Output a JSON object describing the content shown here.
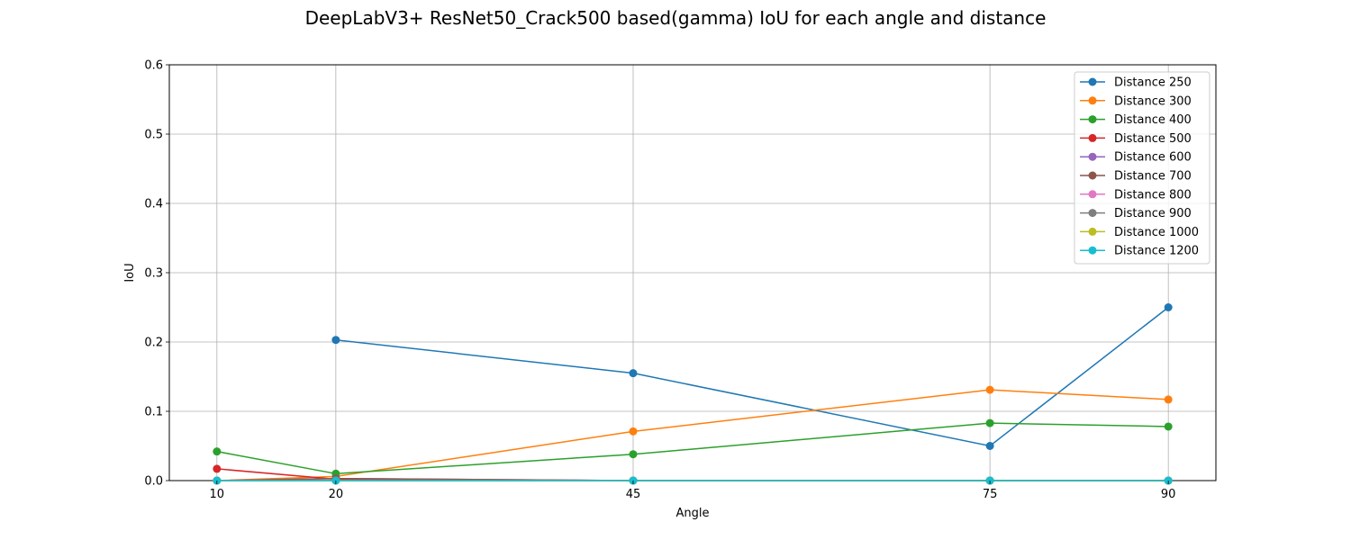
{
  "chart_data": {
    "type": "line",
    "title": "DeepLabV3+ ResNet50_Crack500 based(gamma) IoU for each angle and distance",
    "xlabel": "Angle",
    "ylabel": "IoU",
    "x": [
      10,
      20,
      45,
      75,
      90
    ],
    "x_tick_labels": [
      "10",
      "20",
      "45",
      "75",
      "90"
    ],
    "xlim": [
      6,
      94
    ],
    "ylim": [
      0,
      0.6
    ],
    "y_ticks": [
      0.0,
      0.1,
      0.2,
      0.3,
      0.4,
      0.5,
      0.6
    ],
    "y_tick_labels": [
      "0.0",
      "0.1",
      "0.2",
      "0.3",
      "0.4",
      "0.5",
      "0.6"
    ],
    "grid": true,
    "legend_position": "top-right",
    "series": [
      {
        "name": "Distance 250",
        "color": "#1f77b4",
        "values": [
          null,
          0.203,
          0.155,
          0.05,
          0.25
        ]
      },
      {
        "name": "Distance 300",
        "color": "#ff7f0e",
        "values": [
          0.0,
          0.006,
          0.071,
          0.131,
          0.117
        ]
      },
      {
        "name": "Distance 400",
        "color": "#2ca02c",
        "values": [
          0.042,
          0.01,
          0.038,
          0.083,
          0.078
        ]
      },
      {
        "name": "Distance 500",
        "color": "#d62728",
        "values": [
          0.017,
          0.002,
          0.0,
          0.0,
          0.0
        ]
      },
      {
        "name": "Distance 600",
        "color": "#9467bd",
        "values": [
          0.0,
          0.003,
          0.0,
          0.0,
          0.0
        ]
      },
      {
        "name": "Distance 700",
        "color": "#8c564b",
        "values": [
          0.0,
          0.003,
          0.0,
          0.0,
          0.0
        ]
      },
      {
        "name": "Distance 800",
        "color": "#e377c2",
        "values": [
          0.0,
          0.0,
          0.0,
          0.0,
          0.0
        ]
      },
      {
        "name": "Distance 900",
        "color": "#7f7f7f",
        "values": [
          0.0,
          0.0,
          0.0,
          0.0,
          0.0
        ]
      },
      {
        "name": "Distance 1000",
        "color": "#bcbd22",
        "values": [
          0.0,
          0.0,
          0.0,
          0.0,
          0.0
        ]
      },
      {
        "name": "Distance 1200",
        "color": "#17becf",
        "values": [
          0.0,
          0.0,
          0.0,
          0.0,
          0.0
        ]
      }
    ]
  }
}
